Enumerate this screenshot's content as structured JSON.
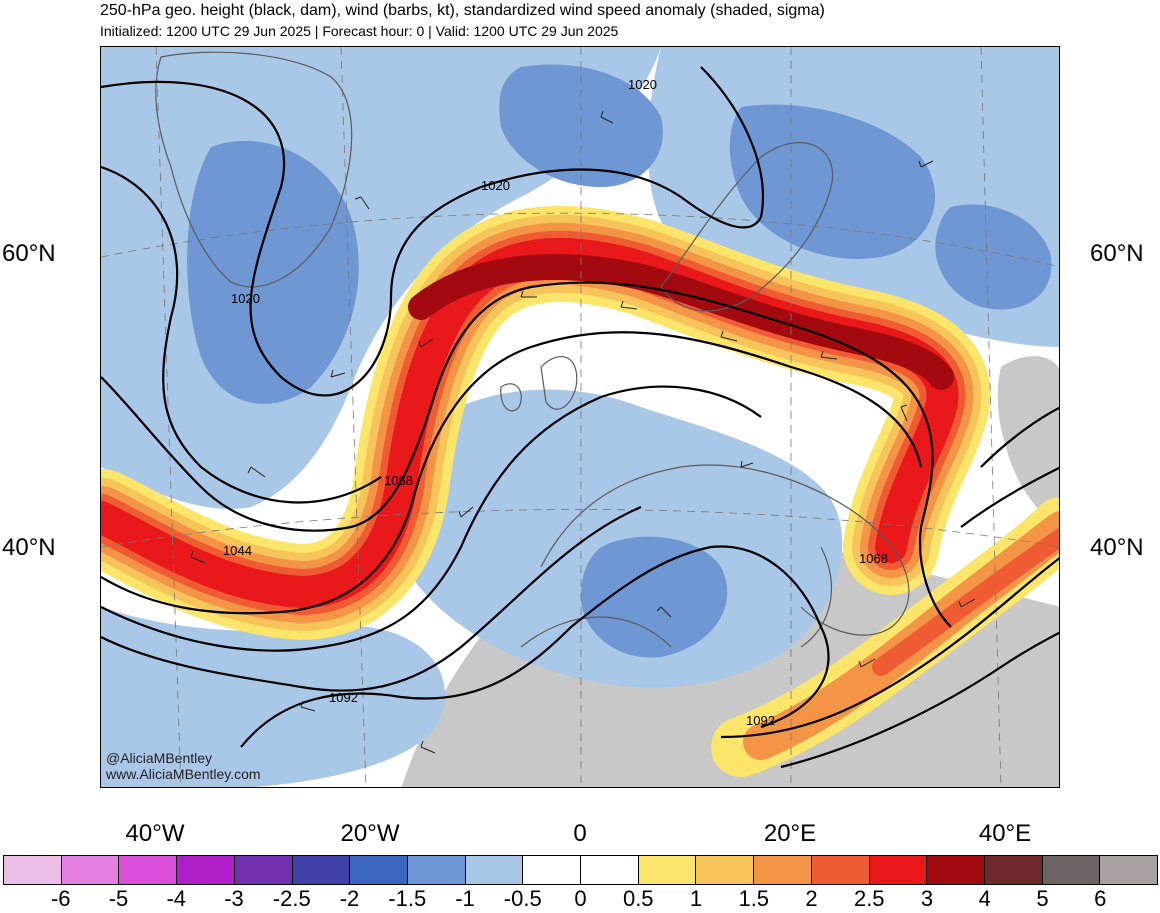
{
  "header": {
    "title": "250-hPa geo. height (black, dam), wind (barbs, kt), standardized wind speed anomaly (shaded, sigma)",
    "subtitle": "Initialized: 1200 UTC 29 Jun 2025 | Forecast hour: 0 | Valid: 1200 UTC 29 Jun 2025"
  },
  "map": {
    "lat_labels": [
      "60°N",
      "40°N"
    ],
    "lon_labels": [
      "40°W",
      "20°W",
      "0",
      "20°E",
      "40°E"
    ],
    "contour_labels": [
      "1020",
      "1020",
      "1020",
      "1068",
      "1044",
      "1068",
      "1092",
      "1092"
    ],
    "credit_handle": "@AliciaMBentley",
    "credit_url": "www.AliciaMBentley.com",
    "colors": {
      "land_gray": "#c8c8c8",
      "ocean_white": "#ffffff",
      "border_gray": "#5a5a5a"
    }
  },
  "colorbar": {
    "labels": [
      "-6",
      "-5",
      "-4",
      "-3",
      "-2.5",
      "-2",
      "-1.5",
      "-1",
      "-0.5",
      "0",
      "0.5",
      "1",
      "1.5",
      "2",
      "2.5",
      "3",
      "4",
      "5",
      "6"
    ],
    "colors": [
      "#ebbde9",
      "#e580e3",
      "#d94fd9",
      "#b01ec7",
      "#7030b0",
      "#4040a8",
      "#3a66c0",
      "#6f97d4",
      "#a9c8e8",
      "#ffffff",
      "#ffffff",
      "#fbe56a",
      "#f6c45a",
      "#f49446",
      "#ef5c33",
      "#e8181b",
      "#a30a10",
      "#6e2a2a",
      "#6e6464",
      "#a9a0a0"
    ]
  }
}
